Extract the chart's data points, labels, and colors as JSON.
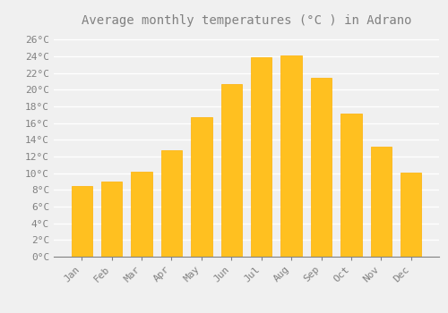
{
  "title": "Average monthly temperatures (°C ) in Adrano",
  "months": [
    "Jan",
    "Feb",
    "Mar",
    "Apr",
    "May",
    "Jun",
    "Jul",
    "Aug",
    "Sep",
    "Oct",
    "Nov",
    "Dec"
  ],
  "temperatures": [
    8.5,
    9.0,
    10.2,
    12.7,
    16.7,
    20.7,
    23.9,
    24.1,
    21.4,
    17.1,
    13.2,
    10.1
  ],
  "bar_color": "#FFC020",
  "bar_edge_color": "#FFB000",
  "background_color": "#F0F0F0",
  "grid_color": "#FFFFFF",
  "text_color": "#808080",
  "ylim": [
    0,
    27
  ],
  "ytick_interval": 2,
  "title_fontsize": 10,
  "tick_fontsize": 8,
  "font_family": "monospace"
}
